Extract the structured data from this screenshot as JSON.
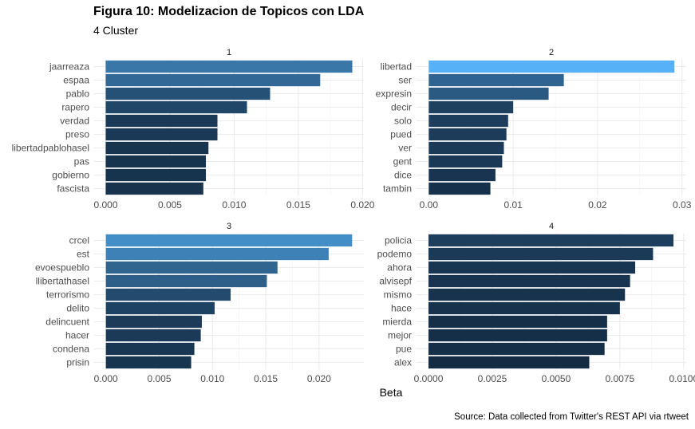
{
  "title": "Figura 10: Modelizacion de Topicos con LDA",
  "subtitle": "4 Cluster",
  "caption": "Source: Data collected from Twitter's REST API via rtweet",
  "chart_data": {
    "type": "bar",
    "orientation": "horizontal",
    "xlabel": "Beta",
    "ylabel": "",
    "grid": true,
    "color_scale": [
      "#132B43",
      "#56B1F7"
    ],
    "facets": [
      {
        "strip": "1",
        "categories": [
          "jaarreaza",
          "espaa",
          "pablo",
          "rapero",
          "verdad",
          "preso",
          "libertadpablohasel",
          "pas",
          "gobierno",
          "fascista"
        ],
        "values": [
          0.0192,
          0.0167,
          0.0128,
          0.011,
          0.0087,
          0.0087,
          0.008,
          0.0078,
          0.0078,
          0.0076
        ],
        "xlim": [
          -0.0009,
          0.0201
        ],
        "ticks": [
          0,
          0.005,
          0.01,
          0.015,
          0.02
        ],
        "tick_labels": [
          "0.000",
          "0.005",
          "0.010",
          "0.015",
          "0.020"
        ]
      },
      {
        "strip": "2",
        "categories": [
          "libertad",
          "ser",
          "expresin",
          "decir",
          "solo",
          "pued",
          "ver",
          "gent",
          "dice",
          "tambin"
        ],
        "values": [
          0.0291,
          0.016,
          0.0142,
          0.01,
          0.0094,
          0.0092,
          0.0089,
          0.0087,
          0.0079,
          0.0073
        ],
        "xlim": [
          -0.00145,
          0.0305
        ],
        "ticks": [
          0,
          0.01,
          0.02,
          0.03
        ],
        "tick_labels": [
          "0.00",
          "0.01",
          "0.02",
          "0.03"
        ]
      },
      {
        "strip": "3",
        "categories": [
          "crcel",
          "est",
          "evoespueblo",
          "llibertathasel",
          "terrorismo",
          "delito",
          "delincuent",
          "hacer",
          "condena",
          "prisin"
        ],
        "values": [
          0.0231,
          0.0209,
          0.0161,
          0.0151,
          0.0117,
          0.0102,
          0.009,
          0.0089,
          0.0083,
          0.008
        ],
        "xlim": [
          -0.0011,
          0.0242
        ],
        "ticks": [
          0,
          0.005,
          0.01,
          0.015,
          0.02
        ],
        "tick_labels": [
          "0.000",
          "0.005",
          "0.010",
          "0.015",
          "0.020"
        ]
      },
      {
        "strip": "4",
        "categories": [
          "policia",
          "podemo",
          "ahora",
          "alvisepf",
          "mismo",
          "hace",
          "mierda",
          "mejor",
          "pue",
          "alex"
        ],
        "values": [
          0.0096,
          0.0088,
          0.0081,
          0.0079,
          0.0077,
          0.0075,
          0.007,
          0.007,
          0.0069,
          0.0063
        ],
        "xlim": [
          -0.00047,
          0.0101
        ],
        "ticks": [
          0,
          0.0025,
          0.005,
          0.0075,
          0.01
        ],
        "tick_labels": [
          "0.0000",
          "0.0025",
          "0.0050",
          "0.0075",
          "0.0100"
        ]
      }
    ]
  }
}
